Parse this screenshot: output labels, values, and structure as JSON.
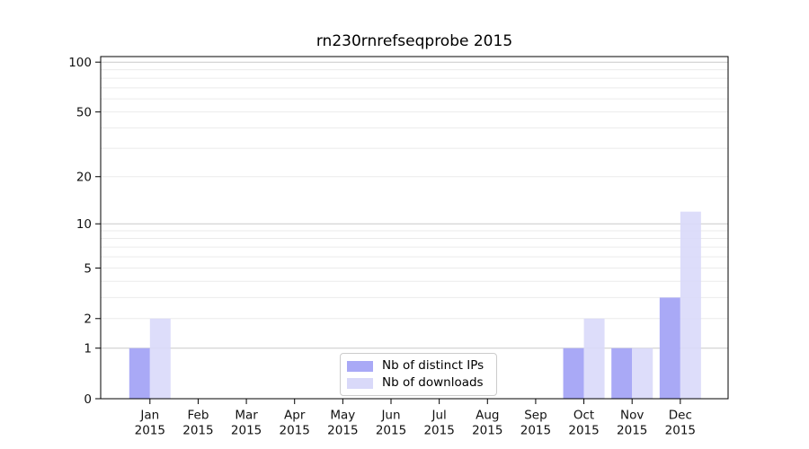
{
  "chart_data": {
    "type": "bar",
    "title": "rn230rnrefseqprobe 2015",
    "categories": [
      "Jan",
      "Feb",
      "Mar",
      "Apr",
      "May",
      "Jun",
      "Jul",
      "Aug",
      "Sep",
      "Oct",
      "Nov",
      "Dec"
    ],
    "year_label": "2015",
    "series": [
      {
        "name": "Nb of distinct IPs",
        "color": "#a9a9f6",
        "values": [
          1,
          0,
          0,
          0,
          0,
          0,
          0,
          0,
          0,
          1,
          1,
          3
        ]
      },
      {
        "name": "Nb of downloads",
        "color": "#d9d9f9",
        "values": [
          2,
          0,
          0,
          0,
          0,
          0,
          0,
          0,
          0,
          2,
          1,
          12
        ]
      }
    ],
    "xlabel": "",
    "ylabel": "",
    "yscale": "log1p",
    "ylim": [
      0,
      108
    ],
    "yticks": [
      0,
      1,
      2,
      5,
      10,
      20,
      50,
      100
    ],
    "grid_major": [
      1,
      10,
      100
    ],
    "grid_minor": [
      2,
      3,
      4,
      5,
      6,
      7,
      8,
      9,
      20,
      30,
      40,
      50,
      60,
      70,
      80,
      90
    ],
    "legend_position": "lower center",
    "grid": "on"
  },
  "colors": {
    "grid_major": "#c9c9c9",
    "grid_minor": "#ebebeb",
    "spine": "#000000",
    "tick_text": "#111111",
    "background": "#ffffff"
  }
}
